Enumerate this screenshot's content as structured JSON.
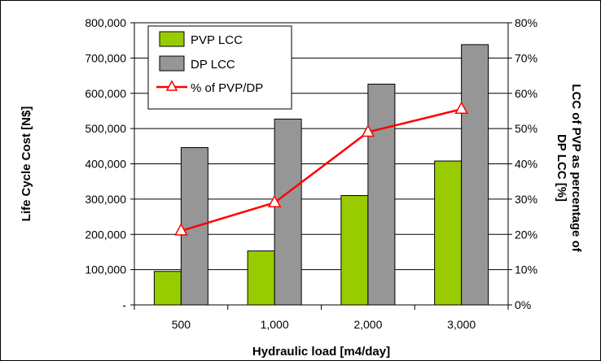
{
  "chart_data": {
    "type": "bar",
    "categories": [
      "500",
      "1,000",
      "2,000",
      "3,000"
    ],
    "xlabel": "Hydraulic load [m4/day]",
    "ylabel": "Life Cycle Cost [N$]",
    "y2label_line1": "LCC of PVP as percentage of",
    "y2label_line2": "DP LCC [%]",
    "ylim": [
      0,
      800000
    ],
    "y2lim": [
      0,
      0.8
    ],
    "yticks": [
      "-",
      "100,000",
      "200,000",
      "300,000",
      "400,000",
      "500,000",
      "600,000",
      "700,000",
      "800,000"
    ],
    "y2ticks": [
      "0%",
      "10%",
      "20%",
      "30%",
      "40%",
      "50%",
      "60%",
      "70%",
      "80%"
    ],
    "grid": true,
    "legend_position": "top-left",
    "series": [
      {
        "name": "PVP LCC",
        "kind": "bar",
        "axis": "left",
        "color": "#99cc00",
        "values": [
          95000,
          153000,
          310000,
          408000
        ]
      },
      {
        "name": "DP LCC",
        "kind": "bar",
        "axis": "left",
        "color": "#969696",
        "values": [
          446000,
          527000,
          626000,
          738000
        ]
      },
      {
        "name": "% of PVP/DP",
        "kind": "line",
        "axis": "right",
        "color": "#ff0000",
        "marker": "triangle-open",
        "values": [
          0.21,
          0.29,
          0.49,
          0.555
        ]
      }
    ]
  }
}
